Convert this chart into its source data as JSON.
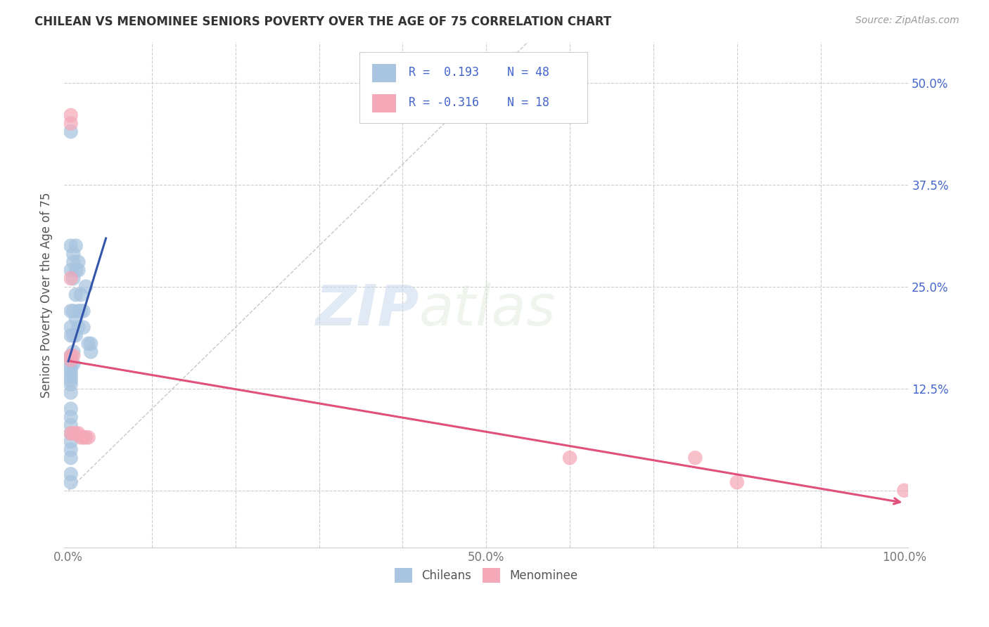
{
  "title": "CHILEAN VS MENOMINEE SENIORS POVERTY OVER THE AGE OF 75 CORRELATION CHART",
  "source": "Source: ZipAtlas.com",
  "ylabel": "Seniors Poverty Over the Age of 75",
  "xlim": [
    -0.005,
    1.005
  ],
  "ylim": [
    -0.07,
    0.55
  ],
  "x_ticks": [
    0.0,
    0.1,
    0.2,
    0.3,
    0.4,
    0.5,
    0.6,
    0.7,
    0.8,
    0.9,
    1.0
  ],
  "x_tick_labels": [
    "0.0%",
    "",
    "",
    "",
    "",
    "",
    "",
    "",
    "",
    "",
    "100.0%"
  ],
  "y_tick_vals": [
    0.0,
    0.125,
    0.25,
    0.375,
    0.5
  ],
  "y_tick_labels": [
    "",
    "12.5%",
    "25.0%",
    "37.5%",
    "50.0%"
  ],
  "grid_color": "#cccccc",
  "background_color": "#ffffff",
  "diagonal_line_color": "#bbbbbb",
  "chilean_color": "#a8c4e0",
  "menominee_color": "#f4a8b8",
  "chilean_line_color": "#3355aa",
  "menominee_line_color": "#e0507a",
  "legend_R_chilean": "0.193",
  "legend_N_chilean": "48",
  "legend_R_menominee": "-0.316",
  "legend_N_menominee": "18",
  "label_color": "#4466cc",
  "watermark_zip": "ZIP",
  "watermark_atlas": "atlas",
  "chilean_x": [
    0.003,
    0.003,
    0.003,
    0.003,
    0.003,
    0.003,
    0.003,
    0.003,
    0.006,
    0.006,
    0.006,
    0.006,
    0.006,
    0.006,
    0.006,
    0.009,
    0.009,
    0.009,
    0.009,
    0.009,
    0.012,
    0.012,
    0.012,
    0.012,
    0.015,
    0.015,
    0.018,
    0.018,
    0.021,
    0.024,
    0.027,
    0.027,
    0.003,
    0.003,
    0.003,
    0.003,
    0.003,
    0.003,
    0.003,
    0.003,
    0.003,
    0.003,
    0.003,
    0.003,
    0.003,
    0.003,
    0.003,
    0.003
  ],
  "chilean_y": [
    0.44,
    0.3,
    0.27,
    0.22,
    0.2,
    0.19,
    0.165,
    0.16,
    0.29,
    0.28,
    0.26,
    0.22,
    0.19,
    0.17,
    0.155,
    0.3,
    0.27,
    0.24,
    0.21,
    0.19,
    0.28,
    0.27,
    0.22,
    0.2,
    0.24,
    0.22,
    0.22,
    0.2,
    0.25,
    0.18,
    0.18,
    0.17,
    0.155,
    0.15,
    0.145,
    0.14,
    0.135,
    0.13,
    0.12,
    0.1,
    0.09,
    0.08,
    0.07,
    0.06,
    0.05,
    0.04,
    0.02,
    0.01
  ],
  "menominee_x": [
    0.003,
    0.003,
    0.003,
    0.003,
    0.003,
    0.003,
    0.006,
    0.006,
    0.009,
    0.012,
    0.015,
    0.018,
    0.021,
    0.024,
    0.6,
    0.75,
    0.8,
    1.0
  ],
  "menominee_y": [
    0.46,
    0.45,
    0.26,
    0.165,
    0.16,
    0.07,
    0.165,
    0.07,
    0.07,
    0.07,
    0.065,
    0.065,
    0.065,
    0.065,
    0.04,
    0.04,
    0.01,
    0.0
  ],
  "legend_bottom_labels": [
    "Chileans",
    "Menominee"
  ]
}
